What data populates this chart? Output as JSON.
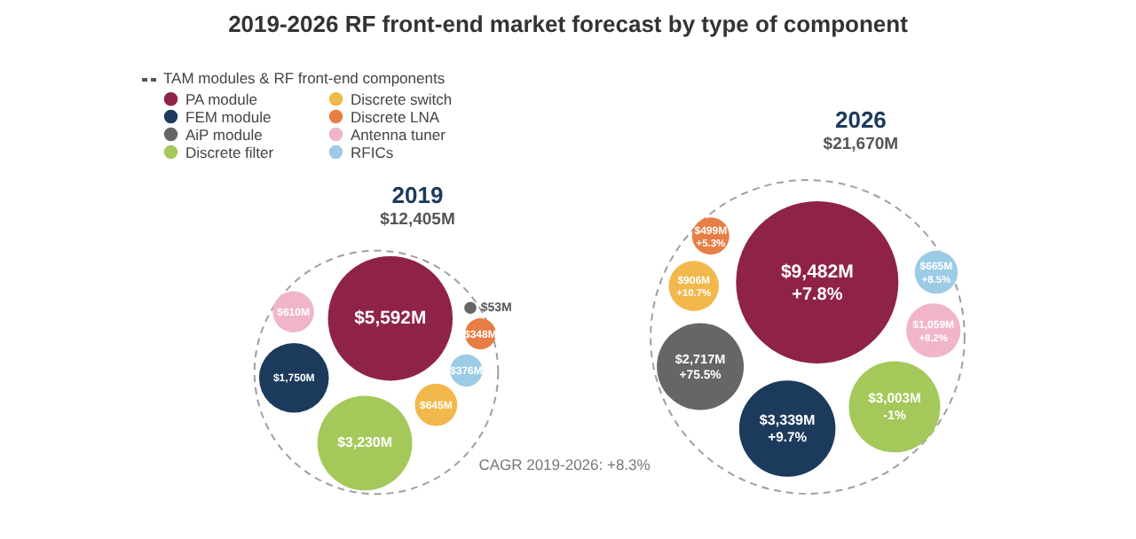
{
  "chart_data": {
    "type": "other",
    "title": "2019-2026 RF front-end market forecast by type of component",
    "legend_title": "TAM modules & RF front-end components",
    "legend": "top left",
    "categories": [
      "2019",
      "2026"
    ],
    "series": [
      {
        "name": "PA module",
        "color": "#8e2346",
        "values": [
          5592,
          9482
        ],
        "value_labels": [
          "$5,592M",
          "$9,482M"
        ]
      },
      {
        "name": "FEM module",
        "color": "#1b3a5c",
        "values": [
          1750,
          3339
        ],
        "value_labels": [
          "$1,750M",
          "$3,339M"
        ]
      },
      {
        "name": "AiP module",
        "color": "#666666",
        "values": [
          53,
          2717
        ],
        "value_labels": [
          "$53M",
          "$2,717M"
        ]
      },
      {
        "name": "Discrete filter",
        "color": "#a5c85a",
        "values": [
          3230,
          3003
        ],
        "value_labels": [
          "$3,230M",
          "$3,003M"
        ]
      },
      {
        "name": "Discrete switch",
        "color": "#f2b84b",
        "values": [
          645,
          906
        ],
        "value_labels": [
          "$645M",
          "$906M"
        ]
      },
      {
        "name": "Discrete LNA",
        "color": "#e67e45",
        "values": [
          348,
          499
        ],
        "value_labels": [
          "$348M",
          "$499M"
        ]
      },
      {
        "name": "Antenna tuner",
        "color": "#f0b5c8",
        "values": [
          610,
          1059
        ],
        "value_labels": [
          "$610M",
          "$1,059M"
        ]
      },
      {
        "name": "RFICs",
        "color": "#9ccbe5",
        "values": [
          376,
          665
        ],
        "value_labels": [
          "$376M",
          "$665M"
        ]
      }
    ],
    "totals": [
      "$12,405M",
      "$21,670M"
    ],
    "annotations": [
      "+7.8%",
      "+9.7%",
      "+75.5%",
      "-1%",
      "+10.7%",
      "+5.3%",
      "+8.2%",
      "+8.5%",
      "CAGR 2019-2026: +8.3%"
    ]
  }
}
